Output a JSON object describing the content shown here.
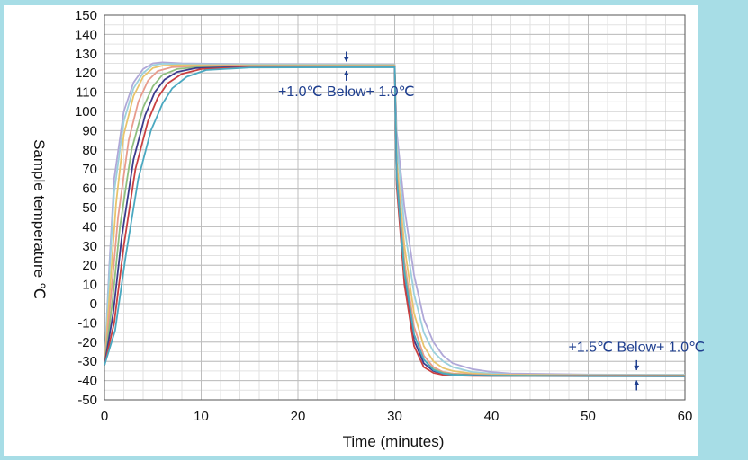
{
  "chart_data": {
    "type": "line",
    "xlabel": "Time (minutes)",
    "ylabel": "Sample temperature ℃",
    "xlim": [
      0,
      60
    ],
    "ylim": [
      -50,
      150
    ],
    "x_ticks": [
      0,
      10,
      20,
      30,
      40,
      50,
      60
    ],
    "y_ticks": [
      150,
      140,
      130,
      120,
      110,
      100,
      90,
      80,
      70,
      60,
      50,
      40,
      30,
      20,
      10,
      0,
      -10,
      -20,
      -30,
      -40,
      -50
    ],
    "grid": true,
    "annotations": [
      {
        "text": "+1.0℃ Below+ 1.0℃",
        "x": 25,
        "y": 108
      },
      {
        "text": "+1.5℃ Below+ 1.0℃",
        "x": 55,
        "y": -25
      }
    ],
    "series": [
      {
        "color": "#b0a8d8",
        "values": [
          [
            0,
            -32
          ],
          [
            0.5,
            20
          ],
          [
            1,
            65
          ],
          [
            2,
            100
          ],
          [
            3,
            115
          ],
          [
            4,
            122
          ],
          [
            5,
            125
          ],
          [
            6,
            125.5
          ],
          [
            8,
            125
          ],
          [
            15,
            124.6
          ],
          [
            30,
            124.5
          ],
          [
            30.2,
            90
          ],
          [
            31,
            50
          ],
          [
            32,
            15
          ],
          [
            33,
            -8
          ],
          [
            34,
            -20
          ],
          [
            35,
            -27
          ],
          [
            36,
            -31
          ],
          [
            38,
            -34
          ],
          [
            40,
            -35.5
          ],
          [
            42,
            -36.3
          ],
          [
            50,
            -36.8
          ],
          [
            60,
            -37
          ]
        ]
      },
      {
        "color": "#9cd0dc",
        "values": [
          [
            0,
            -32
          ],
          [
            0.5,
            15
          ],
          [
            1,
            58
          ],
          [
            2,
            95
          ],
          [
            3,
            112
          ],
          [
            4,
            120
          ],
          [
            5,
            124
          ],
          [
            6,
            124.8
          ],
          [
            8,
            124.6
          ],
          [
            15,
            124.4
          ],
          [
            30,
            124.3
          ],
          [
            30.2,
            85
          ],
          [
            31,
            40
          ],
          [
            32,
            5
          ],
          [
            33,
            -15
          ],
          [
            34,
            -25
          ],
          [
            35,
            -30
          ],
          [
            36,
            -33
          ],
          [
            38,
            -35.5
          ],
          [
            40,
            -36.3
          ],
          [
            42,
            -36.8
          ],
          [
            50,
            -37
          ],
          [
            60,
            -37
          ]
        ]
      },
      {
        "color": "#e8c46c",
        "values": [
          [
            0,
            -32
          ],
          [
            0.6,
            10
          ],
          [
            1.2,
            52
          ],
          [
            2,
            88
          ],
          [
            3,
            108
          ],
          [
            4,
            118
          ],
          [
            5,
            122.5
          ],
          [
            6,
            123.8
          ],
          [
            8,
            124
          ],
          [
            15,
            124
          ],
          [
            30,
            124
          ],
          [
            30.2,
            75
          ],
          [
            31,
            30
          ],
          [
            32,
            -5
          ],
          [
            33,
            -22
          ],
          [
            34,
            -30
          ],
          [
            35,
            -33.5
          ],
          [
            36,
            -35
          ],
          [
            38,
            -36.3
          ],
          [
            40,
            -36.8
          ],
          [
            50,
            -37.2
          ],
          [
            60,
            -37.3
          ]
        ]
      },
      {
        "color": "#e89c8c",
        "values": [
          [
            0,
            -32
          ],
          [
            0.7,
            5
          ],
          [
            1.4,
            45
          ],
          [
            2.5,
            85
          ],
          [
            3.5,
            105
          ],
          [
            4.5,
            116
          ],
          [
            5.5,
            121
          ],
          [
            7,
            123
          ],
          [
            9,
            123.5
          ],
          [
            15,
            123.8
          ],
          [
            30,
            123.8
          ],
          [
            30.2,
            70
          ],
          [
            31,
            22
          ],
          [
            32,
            -12
          ],
          [
            33,
            -27
          ],
          [
            34,
            -33
          ],
          [
            35,
            -35.5
          ],
          [
            36,
            -36.3
          ],
          [
            38,
            -36.8
          ],
          [
            40,
            -37.1
          ],
          [
            50,
            -37.4
          ],
          [
            60,
            -37.5
          ]
        ]
      },
      {
        "color": "#8fbf7f",
        "values": [
          [
            0,
            -32
          ],
          [
            0.8,
            0
          ],
          [
            1.6,
            40
          ],
          [
            2.8,
            80
          ],
          [
            4,
            102
          ],
          [
            5,
            113
          ],
          [
            6,
            119
          ],
          [
            7.5,
            122
          ],
          [
            9.5,
            123
          ],
          [
            15,
            123.5
          ],
          [
            30,
            123.5
          ],
          [
            30.2,
            68
          ],
          [
            31,
            18
          ],
          [
            32,
            -16
          ],
          [
            33,
            -29
          ],
          [
            34,
            -34
          ],
          [
            35,
            -36
          ],
          [
            36,
            -36.7
          ],
          [
            38,
            -37.1
          ],
          [
            40,
            -37.3
          ],
          [
            50,
            -37.5
          ],
          [
            60,
            -37.6
          ]
        ]
      },
      {
        "color": "#3c3c8c",
        "values": [
          [
            0,
            -32
          ],
          [
            0.9,
            -5
          ],
          [
            1.8,
            35
          ],
          [
            3,
            75
          ],
          [
            4.2,
            98
          ],
          [
            5.2,
            110
          ],
          [
            6.2,
            116.5
          ],
          [
            7.5,
            120.5
          ],
          [
            9.5,
            122.5
          ],
          [
            15,
            123.2
          ],
          [
            30,
            123.3
          ],
          [
            30.2,
            65
          ],
          [
            31,
            14
          ],
          [
            32,
            -19
          ],
          [
            33,
            -31
          ],
          [
            34,
            -35
          ],
          [
            35,
            -36.5
          ],
          [
            36,
            -37
          ],
          [
            38,
            -37.3
          ],
          [
            40,
            -37.5
          ],
          [
            50,
            -37.6
          ],
          [
            60,
            -37.7
          ]
        ]
      },
      {
        "color": "#c94040",
        "values": [
          [
            0,
            -32
          ],
          [
            1,
            -10
          ],
          [
            2,
            30
          ],
          [
            3.2,
            70
          ],
          [
            4.5,
            95
          ],
          [
            5.5,
            107
          ],
          [
            6.5,
            114.5
          ],
          [
            8,
            119.5
          ],
          [
            10,
            122
          ],
          [
            15,
            123
          ],
          [
            30,
            123.1
          ],
          [
            30.2,
            62
          ],
          [
            31,
            10
          ],
          [
            32,
            -22
          ],
          [
            33,
            -33
          ],
          [
            34,
            -36
          ],
          [
            35,
            -37
          ],
          [
            36,
            -37.3
          ],
          [
            38,
            -37.5
          ],
          [
            40,
            -37.6
          ],
          [
            50,
            -37.7
          ],
          [
            60,
            -37.8
          ]
        ]
      },
      {
        "color": "#4aa8c0",
        "values": [
          [
            0,
            -32
          ],
          [
            1.1,
            -14
          ],
          [
            2.2,
            25
          ],
          [
            3.5,
            65
          ],
          [
            4.8,
            90
          ],
          [
            6,
            104
          ],
          [
            7,
            112
          ],
          [
            8.5,
            118
          ],
          [
            10.5,
            121.5
          ],
          [
            15,
            122.8
          ],
          [
            30,
            123
          ],
          [
            30.2,
            66
          ],
          [
            31,
            16
          ],
          [
            32,
            -16
          ],
          [
            33,
            -29
          ],
          [
            34,
            -34.5
          ],
          [
            35,
            -36.3
          ],
          [
            36,
            -37
          ],
          [
            38,
            -37.4
          ],
          [
            40,
            -37.5
          ],
          [
            50,
            -37.7
          ],
          [
            60,
            -37.8
          ]
        ]
      }
    ]
  }
}
